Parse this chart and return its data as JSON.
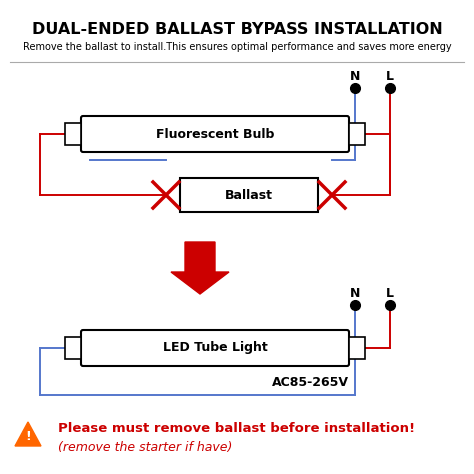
{
  "title": "DUAL-ENDED BALLAST BYPASS INSTALLATION",
  "subtitle": "Remove the ballast to install.This ensures optimal performance and saves more energy",
  "fluorescent_label": "Fluorescent Bulb",
  "ballast_label": "Ballast",
  "led_label": "LED Tube Light",
  "voltage_label": "AC85-265V",
  "warning_line1": "Please must remove ballast before installation!",
  "warning_line2": "(remove the starter if have)",
  "bg_color": "#ffffff",
  "line_blue": "#5577cc",
  "line_red": "#cc0000",
  "text_color": "#000000",
  "warning_color": "#cc0000",
  "title_fontsize": 11.5,
  "subtitle_fontsize": 7.0,
  "label_fontsize": 9,
  "warning_fontsize": 9.5
}
